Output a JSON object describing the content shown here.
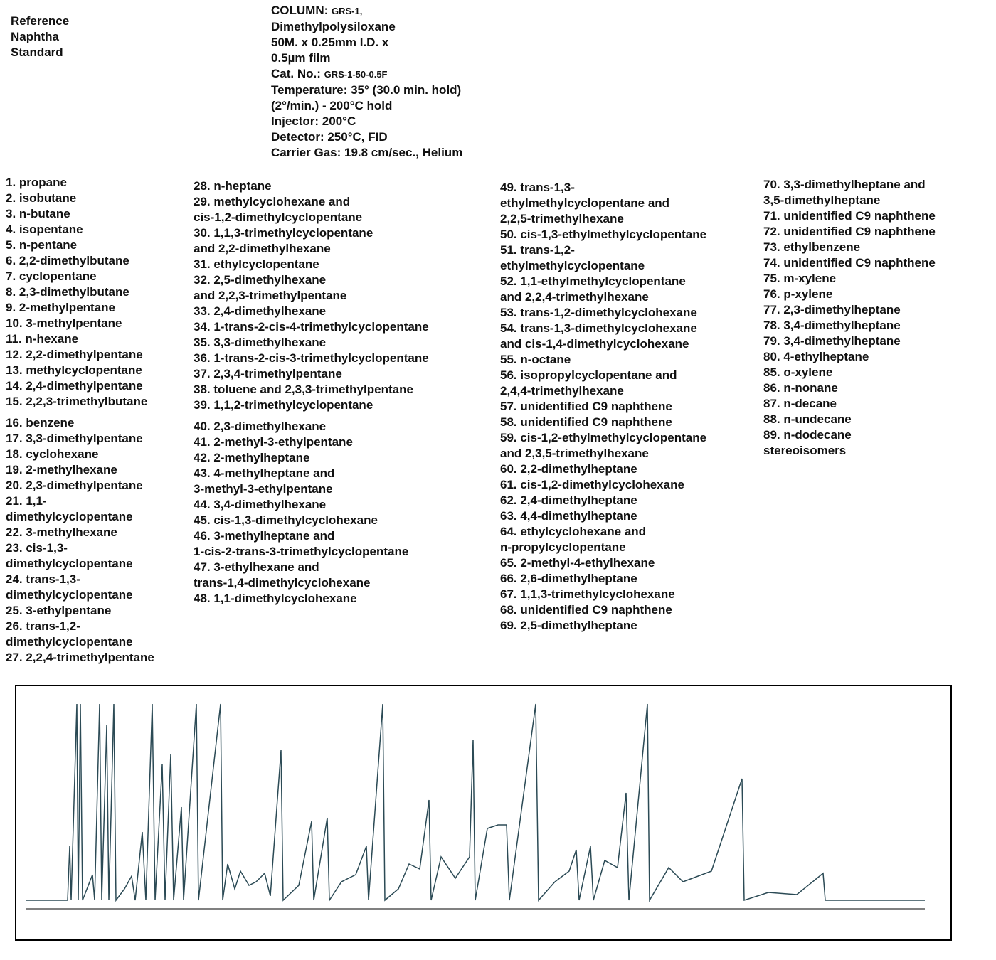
{
  "header": {
    "title_lines": [
      "Reference",
      "Naphtha",
      "Standard"
    ],
    "column_info": [
      {
        "label": "COLUMN:",
        "value": "GRS-1,"
      },
      {
        "label": "Dimethylpolysiloxane"
      },
      {
        "label": "50M. x 0.25mm I.D. x"
      },
      {
        "label": "0.5µm film"
      },
      {
        "label": "Cat. No.:",
        "value": "GRS-1-50-0.5F"
      },
      {
        "label": "Temperature: 35° (30.0 min. hold)"
      },
      {
        "label": "(2°/min.) - 200°C hold"
      },
      {
        "label": "Injector: 200°C"
      },
      {
        "label": "Detector: 250°C, FID"
      },
      {
        "label": "Carrier Gas: 19.8 cm/sec., Helium"
      }
    ]
  },
  "compounds": {
    "columns": [
      [
        [
          "1. propane",
          "2. isobutane",
          "3. n-butane",
          "4. isopentane",
          "5. n-pentane",
          "6. 2,2-dimethylbutane",
          "7. cyclopentane",
          "8. 2,3-dimethylbutane",
          "9. 2-methylpentane",
          "10. 3-methylpentane",
          "11. n-hexane",
          "12. 2,2-dimethylpentane",
          "13. methylcyclopentane",
          "14. 2,4-dimethylpentane",
          "15. 2,2,3-trimethylbutane"
        ],
        [
          "16. benzene",
          "17. 3,3-dimethylpentane",
          "18. cyclohexane",
          "19. 2-methylhexane",
          "20. 2,3-dimethylpentane",
          "21. 1,1-",
          "dimethylcyclopentane",
          "22. 3-methylhexane",
          "23. cis-1,3-",
          "dimethylcyclopentane",
          "24. trans-1,3-",
          "dimethylcyclopentane",
          "25. 3-ethylpentane",
          "26. trans-1,2-",
          "dimethylcyclopentane",
          "27. 2,2,4-trimethylpentane"
        ]
      ],
      [
        [
          "28. n-heptane",
          "29. methylcyclohexane and",
          "cis-1,2-dimethylcyclopentane",
          "30. 1,1,3-trimethylcyclopentane",
          "and 2,2-dimethylhexane",
          "31. ethylcyclopentane",
          "32. 2,5-dimethylhexane",
          "and 2,2,3-trimethylpentane",
          "33. 2,4-dimethylhexane",
          "34. 1-trans-2-cis-4-trimethylcyclopentane",
          "35. 3,3-dimethylhexane",
          "36. 1-trans-2-cis-3-trimethylcyclopentane",
          "37. 2,3,4-trimethylpentane",
          "38. toluene and 2,3,3-trimethylpentane",
          "39. 1,1,2-trimethylcyclopentane"
        ],
        [
          "40. 2,3-dimethylhexane",
          "41. 2-methyl-3-ethylpentane",
          "42. 2-methylheptane",
          "43. 4-methylheptane and",
          "3-methyl-3-ethylpentane",
          "44. 3,4-dimethylhexane",
          "45. cis-1,3-dimethylcyclohexane",
          "46. 3-methylheptane and",
          "1-cis-2-trans-3-trimethylcyclopentane",
          "47. 3-ethylhexane and",
          "trans-1,4-dimethylcyclohexane",
          "48. 1,1-dimethylcyclohexane"
        ]
      ],
      [
        [
          "49. trans-1,3-",
          "ethylmethylcyclopentane and",
          "2,2,5-trimethylhexane",
          "50. cis-1,3-ethylmethylcyclopentane",
          "51. trans-1,2-",
          "ethylmethylcyclopentane",
          "52. 1,1-ethylmethylcyclopentane",
          "and 2,2,4-trimethylhexane",
          "53. trans-1,2-dimethylcyclohexane",
          "54. trans-1,3-dimethylcyclohexane",
          "and cis-1,4-dimethylcyclohexane",
          "55. n-octane",
          "56. isopropylcyclopentane and",
          "2,4,4-trimethylhexane",
          "57. unidentified C9 naphthene",
          "58. unidentified C9 naphthene",
          "59. cis-1,2-ethylmethylcyclopentane",
          "and 2,3,5-trimethylhexane",
          "60. 2,2-dimethylheptane",
          "61. cis-1,2-dimethylcyclohexane",
          "62. 2,4-dimethylheptane",
          "63. 4,4-dimethylheptane",
          "64. ethylcyclohexane and",
          "n-propylcyclopentane",
          "65. 2-methyl-4-ethylhexane",
          "66. 2,6-dimethylheptane",
          "67. 1,1,3-trimethylcyclohexane",
          "68. unidentified C9 naphthene",
          "69. 2,5-dimethylheptane"
        ]
      ],
      [
        [
          "70. 3,3-dimethylheptane and",
          "3,5-dimethylheptane",
          "71. unidentified C9 naphthene",
          "72. unidentified C9 naphthene",
          "73. ethylbenzene",
          "74. unidentified C9 naphthene",
          "75. m-xylene",
          "76. p-xylene",
          "77. 2,3-dimethylheptane",
          "78. 3,4-dimethylheptane",
          "79. 3,4-dimethylheptane",
          "80. 4-ethylheptane",
          "85. o-xylene",
          "86. n-nonane",
          "87. n-decane",
          "88. n-undecane",
          "89. n-dodecane",
          "stereoisomers"
        ]
      ]
    ]
  }
}
